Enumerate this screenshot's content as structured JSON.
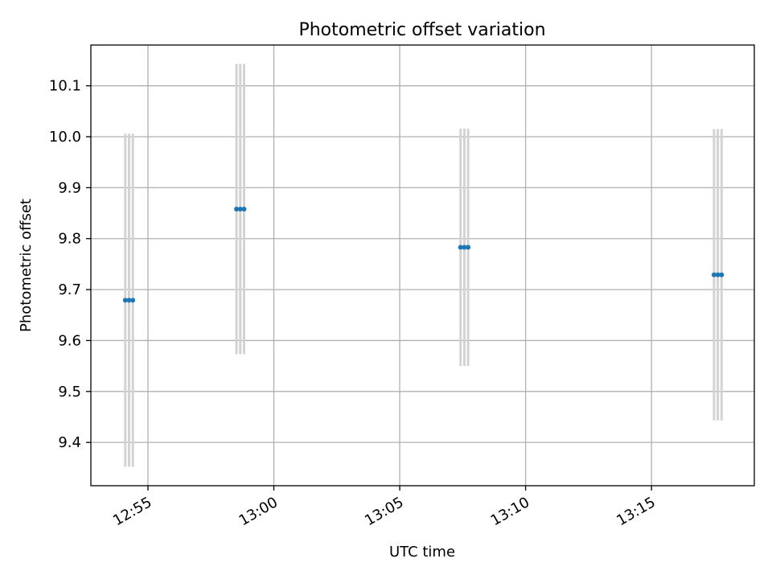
{
  "chart_data": {
    "type": "scatter",
    "title": "Photometric offset variation",
    "xlabel": "UTC time",
    "ylabel": "Photometric offset",
    "x_ticks": [
      "12:55",
      "13:00",
      "13:05",
      "13:10",
      "13:15"
    ],
    "y_ticks": [
      "9.4",
      "9.5",
      "9.6",
      "9.7",
      "9.8",
      "9.9",
      "10.0",
      "10.1"
    ],
    "xlim": [
      "12:52:44",
      "13:19:05"
    ],
    "ylim": [
      9.315,
      10.18
    ],
    "grid": true,
    "marker_color": "#1f77b4",
    "errorbar_color": "#d3d3d3",
    "series": [
      {
        "x": [
          "12:54:06",
          "12:54:15",
          "12:54:24"
        ],
        "y": [
          9.679,
          9.679,
          9.679
        ],
        "yerr": [
          0.327,
          0.327,
          0.327
        ]
      },
      {
        "x": [
          "12:58:31",
          "12:58:40",
          "12:58:49"
        ],
        "y": [
          9.858,
          9.858,
          9.858
        ],
        "yerr": [
          0.285,
          0.285,
          0.285
        ]
      },
      {
        "x": [
          "13:07:25",
          "13:07:34",
          "13:07:43"
        ],
        "y": [
          9.783,
          9.783,
          9.783
        ],
        "yerr": [
          0.233,
          0.233,
          0.233
        ]
      },
      {
        "x": [
          "13:17:29",
          "13:17:38",
          "13:17:47"
        ],
        "y": [
          9.729,
          9.729,
          9.729
        ],
        "yerr": [
          0.286,
          0.286,
          0.286
        ]
      }
    ]
  }
}
